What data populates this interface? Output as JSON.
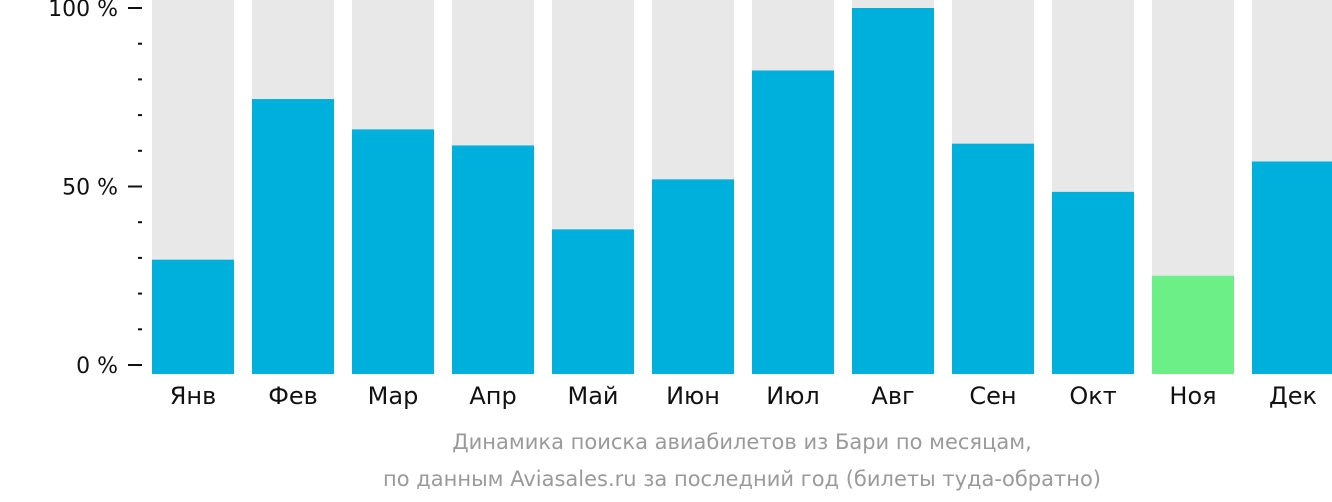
{
  "chart_data": {
    "type": "bar",
    "categories": [
      "Янв",
      "Фев",
      "Мар",
      "Апр",
      "Май",
      "Июн",
      "Июл",
      "Авг",
      "Сен",
      "Окт",
      "Ноя",
      "Дек"
    ],
    "values": [
      29.5,
      74.5,
      66,
      61.5,
      38,
      52,
      82.5,
      100,
      62,
      48.5,
      25,
      57
    ],
    "ylim": [
      0,
      100
    ],
    "yticks": [
      {
        "value": 0,
        "label": "0 %"
      },
      {
        "value": 50,
        "label": "50 %"
      },
      {
        "value": 100,
        "label": "100 %"
      }
    ],
    "minor_tick_step": 10,
    "highlight_index": 10,
    "title": "",
    "subtitle": "",
    "caption_line1": "Динамика поиска авиабилетов из Бари по месяцам,",
    "caption_line2": "по данным Aviasales.ru за последний год (билеты туда-обратно)",
    "xlabel": "",
    "ylabel": "",
    "grid": false,
    "legend": "none"
  },
  "colors": {
    "bar": "#00b0dc",
    "bar_highlight": "#6bef86",
    "bar_background": "#e8e8e8",
    "axis": "#111111",
    "caption": "#9a9a9a"
  }
}
